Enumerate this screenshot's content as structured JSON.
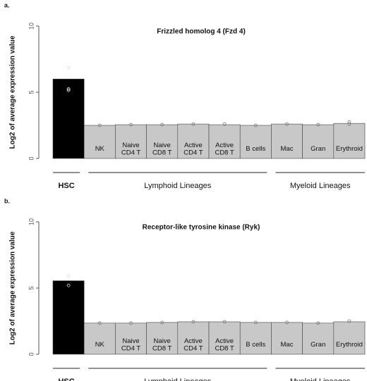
{
  "chart_data": [
    {
      "type": "bar",
      "panel": "a.",
      "title": "Frizzled homolog 4 (Fzd 4)",
      "ylabel": "Log2 of average expression value",
      "categories": [
        "HSC",
        "NK",
        "Naive CD4 T",
        "Naive CD8 T",
        "Active CD4 T",
        "Active CD8 T",
        "B cells",
        "Mac",
        "Gran",
        "Erythroid"
      ],
      "values": [
        6.0,
        2.5,
        2.55,
        2.55,
        2.6,
        2.55,
        2.5,
        2.6,
        2.55,
        2.65
      ],
      "points": [
        [
          6.85,
          5.25,
          5.15
        ],
        [
          2.5
        ],
        [
          2.55
        ],
        [
          2.55
        ],
        [
          2.6
        ],
        [
          2.6
        ],
        [
          2.5
        ],
        [
          2.6
        ],
        [
          2.55
        ],
        [
          2.75,
          2.6
        ]
      ],
      "colors": [
        "#000000",
        "#c8c8c8",
        "#c8c8c8",
        "#c8c8c8",
        "#c8c8c8",
        "#c8c8c8",
        "#c8c8c8",
        "#c8c8c8",
        "#c8c8c8",
        "#c8c8c8"
      ],
      "groups": [
        {
          "label": "HSC",
          "span": 1
        },
        {
          "label": "Lymphoid Lineages",
          "span": 6
        },
        {
          "label": "Myeloid Lineages",
          "span": 3
        }
      ],
      "ylim": [
        0,
        10
      ],
      "yticks": [
        0,
        5,
        10
      ]
    },
    {
      "type": "bar",
      "panel": "b.",
      "title": "Receptor-like tyrosine kinase (Ryk)",
      "ylabel": "Log2 of average expression value",
      "categories": [
        "HSC",
        "NK",
        "Naive CD4 T",
        "Naive CD8 T",
        "Active CD4 T",
        "Active CD8 T",
        "B cells",
        "Mac",
        "Gran",
        "Erythroid"
      ],
      "values": [
        5.55,
        2.35,
        2.35,
        2.4,
        2.45,
        2.45,
        2.4,
        2.4,
        2.35,
        2.45
      ],
      "points": [
        [
          5.9,
          5.2
        ],
        [
          2.35
        ],
        [
          2.35
        ],
        [
          2.4
        ],
        [
          2.45
        ],
        [
          2.45
        ],
        [
          2.4
        ],
        [
          2.4
        ],
        [
          2.35
        ],
        [
          2.5
        ]
      ],
      "colors": [
        "#000000",
        "#c8c8c8",
        "#c8c8c8",
        "#c8c8c8",
        "#c8c8c8",
        "#c8c8c8",
        "#c8c8c8",
        "#c8c8c8",
        "#c8c8c8",
        "#c8c8c8"
      ],
      "groups": [
        {
          "label": "HSC",
          "span": 1
        },
        {
          "label": "Lymphoid Lineages",
          "span": 6
        },
        {
          "label": "Myeloid Lineages",
          "span": 3
        }
      ],
      "ylim": [
        0,
        10
      ],
      "yticks": [
        0,
        5,
        10
      ]
    }
  ]
}
